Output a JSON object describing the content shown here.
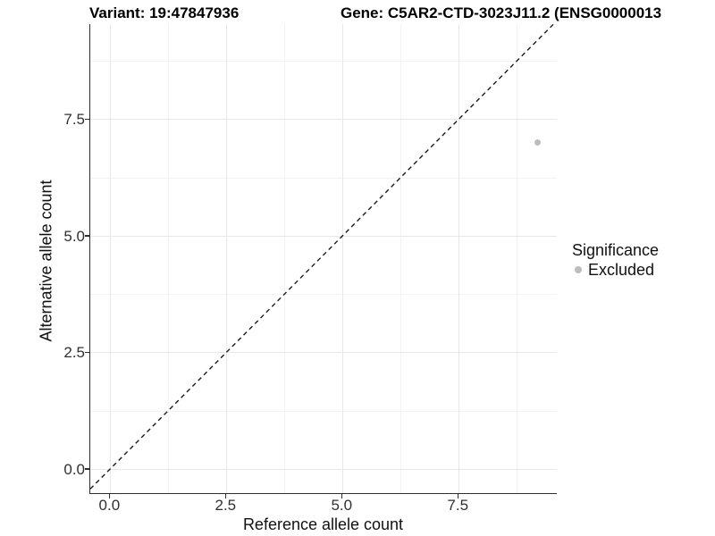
{
  "title": {
    "variant": "Variant: 19:47847936",
    "gene": "Gene: C5AR2-CTD-3023J11.2 (ENSG0000013"
  },
  "chart_data": {
    "type": "scatter",
    "title_left": "Variant: 19:47847936",
    "title_right": "Gene: C5AR2-CTD-3023J11.2 (ENSG0000013",
    "xlabel": "Reference allele count",
    "ylabel": "Alternative allele count",
    "xlim": [
      -0.43,
      9.63
    ],
    "ylim": [
      -0.54,
      9.54
    ],
    "x_ticks": [
      0.0,
      2.5,
      5.0,
      7.5
    ],
    "y_ticks": [
      0.0,
      2.5,
      5.0,
      7.5
    ],
    "x_tick_labels": [
      "0.0",
      "2.5",
      "5.0",
      "7.5"
    ],
    "y_tick_labels": [
      "0.0",
      "2.5",
      "5.0",
      "7.5"
    ],
    "x_minor_ticks": [
      1.25,
      3.75,
      6.25,
      8.75
    ],
    "y_minor_ticks": [
      1.25,
      3.75,
      6.25,
      8.75
    ],
    "grid": true,
    "points": [
      {
        "x": 9.2,
        "y": 7.0,
        "series": "Excluded"
      }
    ],
    "reference_line": {
      "slope": 1,
      "intercept": 0,
      "style": "dashed"
    },
    "legend": {
      "position": "right",
      "title": "Significance",
      "entries": [
        {
          "label": "Excluded",
          "color": "#bdbdbd"
        }
      ]
    },
    "colors": {
      "point_excluded": "#bdbdbd",
      "reference_line": "#1a1a1a",
      "grid_major": "#e8e8e8",
      "grid_minor": "#f3f3f3",
      "axis_line": "#2e2e2e"
    }
  }
}
